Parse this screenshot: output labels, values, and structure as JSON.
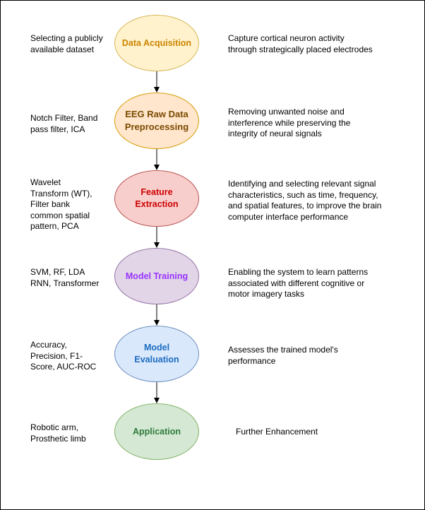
{
  "colors": {
    "acquisition": {
      "fill": "#fff2cc",
      "stroke": "#d6b656",
      "text": "#cc8400"
    },
    "preprocessing": {
      "fill": "#ffe6cc",
      "stroke": "#d79b00",
      "text": "#7a4a00"
    },
    "feature": {
      "fill": "#f8cecc",
      "stroke": "#b85450",
      "text": "#cc0000"
    },
    "training": {
      "fill": "#e1d5e7",
      "stroke": "#9673a6",
      "text": "#9933ff"
    },
    "evaluation": {
      "fill": "#dae8fc",
      "stroke": "#6c8ebf",
      "text": "#1a6bbf"
    },
    "application": {
      "fill": "#d5e8d4",
      "stroke": "#82b366",
      "text": "#2d7a3a"
    }
  },
  "stages": [
    {
      "id": "acquisition",
      "label": "Data Acquisition",
      "left_note": "Selecting a publicly\navailable dataset",
      "right_note": "Capture cortical neuron activity\nthrough strategically placed electrodes"
    },
    {
      "id": "preprocessing",
      "label": "EEG Raw Data Preprocessing",
      "left_note": "Notch Filter, Band\npass filter, ICA",
      "right_note": "Removing unwanted noise and\ninterference while preserving the\nintegrity of neural signals"
    },
    {
      "id": "feature",
      "label": "Feature Extraction",
      "left_note": "Wavelet\nTransform (WT),\nFilter bank\ncommon spatial\npattern, PCA",
      "right_note": "Identifying and selecting relevant signal\ncharacteristics, such as time, frequency,\nand spatial features, to improve the brain\ncomputer interface performance"
    },
    {
      "id": "training",
      "label": "Model Training",
      "left_note": "SVM, RF, LDA\nRNN, Transformer",
      "right_note": "Enabling the system to learn patterns\nassociated with different cognitive or\nmotor imagery tasks"
    },
    {
      "id": "evaluation",
      "label": "Model Evaluation",
      "left_note": "Accuracy,\nPrecision, F1-\nScore, AUC-ROC",
      "right_note": "Assesses the trained model's\nperformance"
    },
    {
      "id": "application",
      "label": "Application",
      "left_note": "Robotic arm,\nProsthetic limb",
      "right_note": "Further Enhancement"
    }
  ]
}
